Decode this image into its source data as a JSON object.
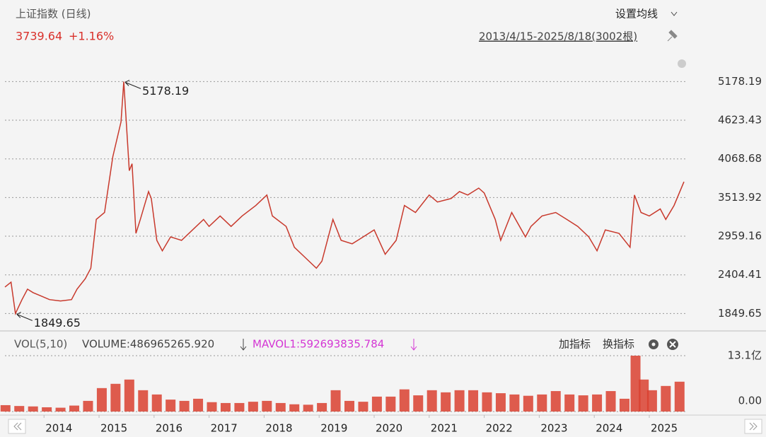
{
  "header": {
    "title": "上证指数 (日线)",
    "price": "3739.64",
    "change": "+1.16%",
    "ma_button": "设置均线",
    "range": "2013/4/15-2025/8/18(3002根)"
  },
  "indicator": {
    "name": "VOL(5,10)",
    "volume": "VOLUME:486965265.920",
    "mavol": "MAVOL1:592693835.784",
    "add": "加指标",
    "switch": "换指标"
  },
  "chart_data": [
    {
      "type": "line",
      "color": "#c8392c",
      "grid": true,
      "xlim": [
        2013.29,
        2025.63
      ],
      "xticks": [
        2014,
        2015,
        2016,
        2017,
        2018,
        2019,
        2020,
        2021,
        2022,
        2023,
        2024,
        2025
      ],
      "ylim": [
        1600,
        5750
      ],
      "yticks": [
        1849.65,
        2404.41,
        2959.16,
        3513.92,
        4068.68,
        4623.43,
        5178.19
      ],
      "x": [
        2013.29,
        2013.4,
        2013.48,
        2013.6,
        2013.7,
        2013.8,
        2013.95,
        2014.1,
        2014.3,
        2014.5,
        2014.6,
        2014.75,
        2014.85,
        2014.95,
        2015.1,
        2015.25,
        2015.4,
        2015.45,
        2015.55,
        2015.6,
        2015.67,
        2015.75,
        2015.9,
        2015.95,
        2016.05,
        2016.15,
        2016.3,
        2016.5,
        2016.7,
        2016.9,
        2017.0,
        2017.2,
        2017.4,
        2017.6,
        2017.85,
        2018.05,
        2018.15,
        2018.4,
        2018.55,
        2018.75,
        2018.95,
        2019.05,
        2019.25,
        2019.4,
        2019.6,
        2019.8,
        2020.0,
        2020.2,
        2020.4,
        2020.55,
        2020.75,
        2021.0,
        2021.15,
        2021.4,
        2021.55,
        2021.7,
        2021.9,
        2022.0,
        2022.2,
        2022.3,
        2022.5,
        2022.75,
        2022.85,
        2023.05,
        2023.3,
        2023.5,
        2023.7,
        2023.9,
        2024.05,
        2024.2,
        2024.45,
        2024.65,
        2024.73,
        2024.85,
        2025.0,
        2025.2,
        2025.3,
        2025.45,
        2025.63
      ],
      "values": [
        2230,
        2300,
        1849.65,
        2050,
        2200,
        2150,
        2100,
        2050,
        2030,
        2050,
        2200,
        2350,
        2500,
        3200,
        3300,
        4100,
        4600,
        5178.19,
        3900,
        4000,
        3000,
        3200,
        3600,
        3500,
        2900,
        2750,
        2950,
        2900,
        3050,
        3200,
        3100,
        3250,
        3100,
        3250,
        3400,
        3550,
        3250,
        3100,
        2800,
        2650,
        2500,
        2600,
        3200,
        2900,
        2850,
        2950,
        3050,
        2700,
        2900,
        3400,
        3300,
        3550,
        3450,
        3500,
        3600,
        3550,
        3650,
        3580,
        3200,
        2900,
        3300,
        2950,
        3100,
        3250,
        3300,
        3200,
        3100,
        2950,
        2750,
        3050,
        3000,
        2800,
        3550,
        3300,
        3250,
        3350,
        3200,
        3400,
        3739.64
      ],
      "annotations": [
        {
          "x": 2015.45,
          "y": 5178.19,
          "label": "5178.19"
        },
        {
          "x": 2013.48,
          "y": 1849.65,
          "label": "1849.65"
        }
      ]
    },
    {
      "type": "bar",
      "color": "#d9402f",
      "ylim": [
        0,
        13.1
      ],
      "yticks": [
        {
          "value": 13.1,
          "label": "13.1亿"
        },
        {
          "value": 0,
          "label": "0.00"
        }
      ],
      "x": [
        2013.3,
        2013.55,
        2013.8,
        2014.05,
        2014.3,
        2014.55,
        2014.8,
        2015.05,
        2015.3,
        2015.55,
        2015.8,
        2016.05,
        2016.3,
        2016.55,
        2016.8,
        2017.05,
        2017.3,
        2017.55,
        2017.8,
        2018.05,
        2018.3,
        2018.55,
        2018.8,
        2019.05,
        2019.3,
        2019.55,
        2019.8,
        2020.05,
        2020.3,
        2020.55,
        2020.8,
        2021.05,
        2021.3,
        2021.55,
        2021.8,
        2022.05,
        2022.3,
        2022.55,
        2022.8,
        2023.05,
        2023.3,
        2023.55,
        2023.8,
        2024.05,
        2024.3,
        2024.55,
        2024.75,
        2024.9,
        2025.05,
        2025.3,
        2025.55
      ],
      "values": [
        1.5,
        1.3,
        1.2,
        1.0,
        0.9,
        1.4,
        2.5,
        5.5,
        6.5,
        7.5,
        5.0,
        4.0,
        2.8,
        2.5,
        3.0,
        2.2,
        2.0,
        2.0,
        2.3,
        2.5,
        2.0,
        1.7,
        1.6,
        2.0,
        5.0,
        2.5,
        2.3,
        3.5,
        3.5,
        5.2,
        3.8,
        5.0,
        4.5,
        5.0,
        5.0,
        4.5,
        4.3,
        4.0,
        3.7,
        4.0,
        4.8,
        4.0,
        3.8,
        4.0,
        4.8,
        3.0,
        13.1,
        7.5,
        5.0,
        6.0,
        7.0
      ]
    }
  ]
}
